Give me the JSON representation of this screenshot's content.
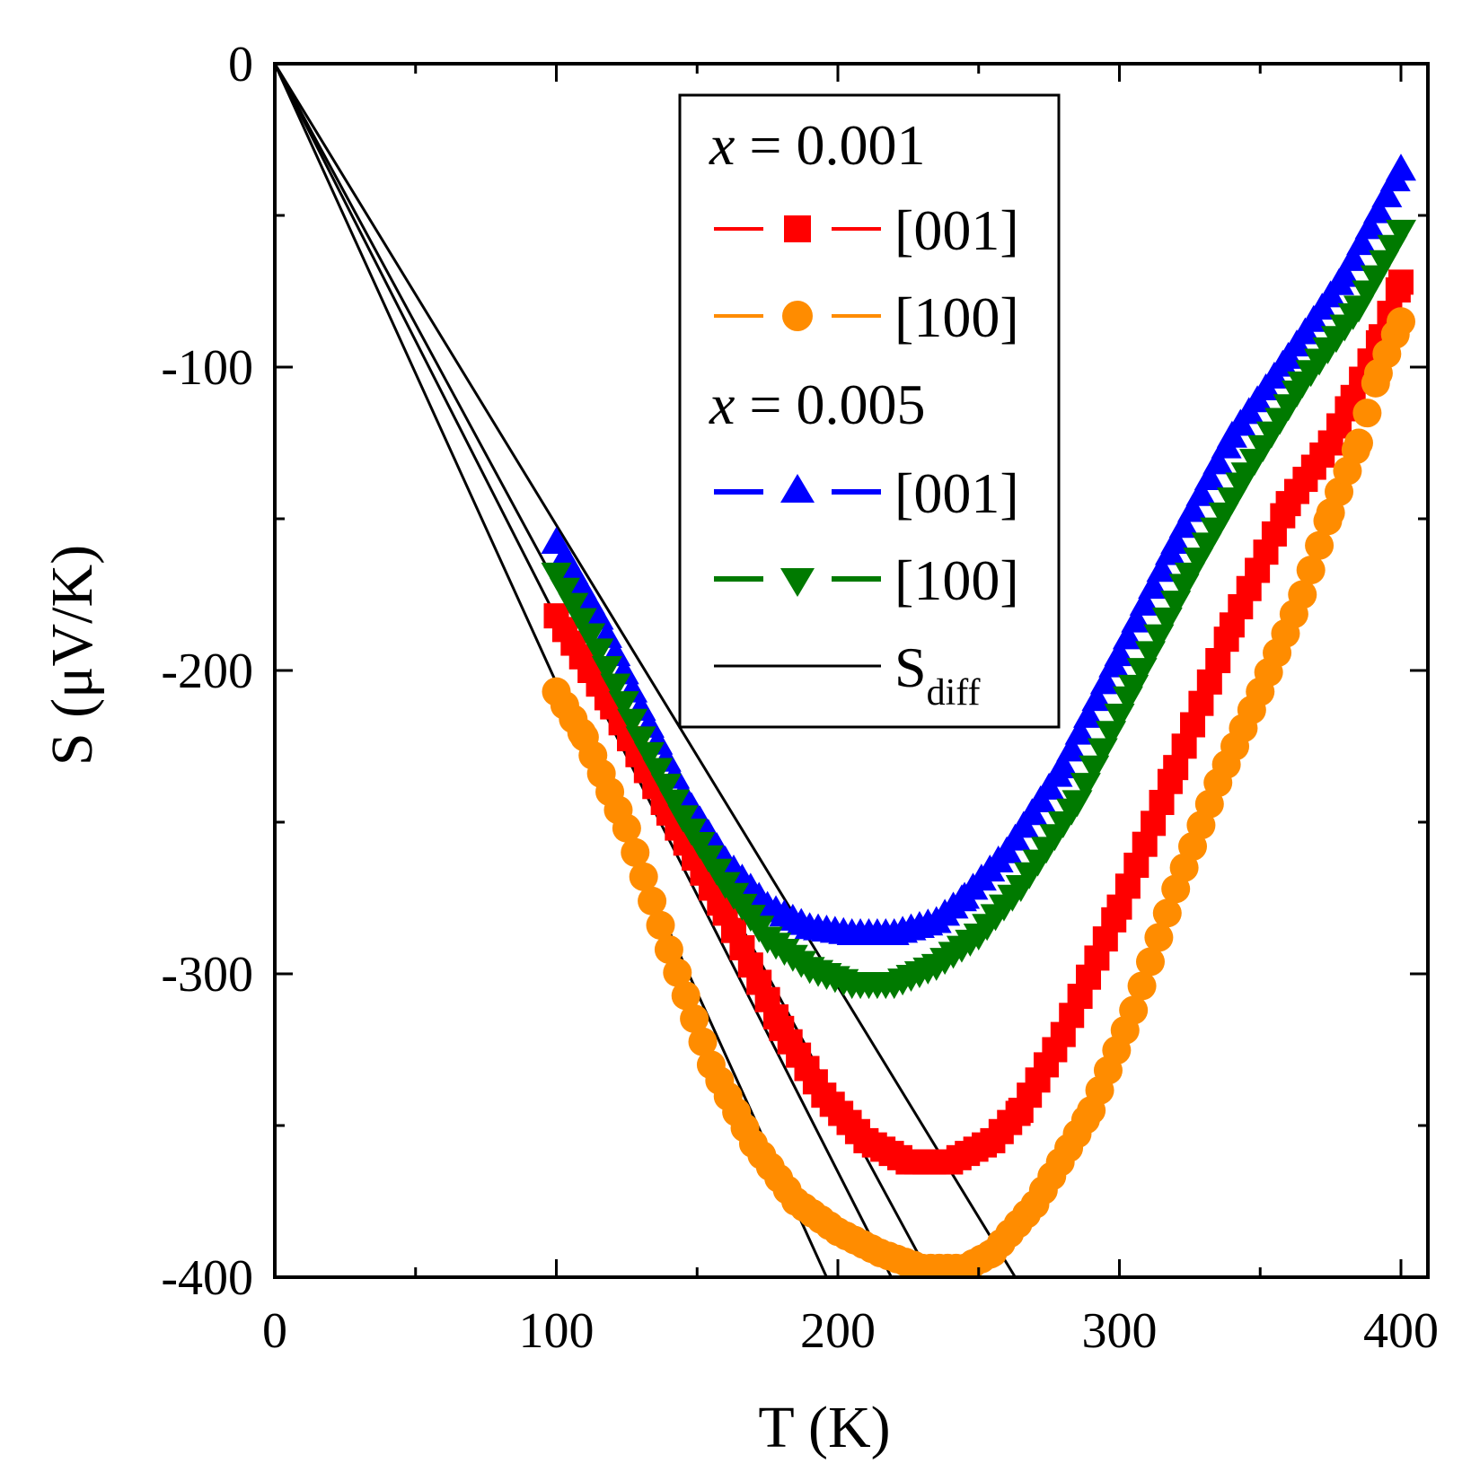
{
  "chart_data": {
    "type": "scatter",
    "title": "",
    "xlabel": "T  (K)",
    "ylabel": "S  (μV/K)",
    "xlim": [
      0,
      410
    ],
    "ylim": [
      -400,
      0
    ],
    "xticks": [
      0,
      100,
      200,
      300,
      400
    ],
    "yticks": [
      0,
      -100,
      -200,
      -300,
      -400
    ],
    "x_tick_labels": [
      "0",
      "100",
      "200",
      "300",
      "400"
    ],
    "y_tick_labels": [
      "0",
      "-100",
      "-200",
      "-300",
      "-400"
    ],
    "minor_x": [
      50,
      150,
      250,
      350
    ],
    "minor_y": [
      -50,
      -150,
      -250,
      -350
    ],
    "legend": {
      "placement": "top-center",
      "group_1": {
        "var": "x",
        "eq": " = 0.001"
      },
      "group_2": {
        "var": "x",
        "eq": " = 0.005"
      },
      "entries": [
        "[001]",
        "[100]",
        "[001]",
        "[100]"
      ],
      "sdiff_main": "S",
      "sdiff_sub": "diff"
    },
    "series": [
      {
        "name": "x = 0.001 [001]",
        "color": "#ff0000",
        "marker": "square",
        "points": [
          [
            100,
            -182
          ],
          [
            120,
            -212
          ],
          [
            140,
            -247
          ],
          [
            160,
            -280
          ],
          [
            180,
            -318
          ],
          [
            195,
            -340
          ],
          [
            210,
            -355
          ],
          [
            225,
            -362
          ],
          [
            240,
            -362
          ],
          [
            255,
            -355
          ],
          [
            265,
            -345
          ],
          [
            280,
            -320
          ],
          [
            300,
            -278
          ],
          [
            320,
            -232
          ],
          [
            340,
            -185
          ],
          [
            360,
            -145
          ],
          [
            375,
            -125
          ],
          [
            383,
            -110
          ],
          [
            393,
            -90
          ],
          [
            400,
            -72
          ]
        ]
      },
      {
        "name": "x = 0.001 [100]",
        "color": "#ff8c00",
        "marker": "circle",
        "points": [
          [
            100,
            -207
          ],
          [
            110,
            -222
          ],
          [
            125,
            -252
          ],
          [
            140,
            -292
          ],
          [
            155,
            -330
          ],
          [
            170,
            -356
          ],
          [
            185,
            -375
          ],
          [
            200,
            -385
          ],
          [
            215,
            -392
          ],
          [
            230,
            -397
          ],
          [
            245,
            -397
          ],
          [
            255,
            -392
          ],
          [
            270,
            -376
          ],
          [
            290,
            -345
          ],
          [
            305,
            -312
          ],
          [
            320,
            -272
          ],
          [
            335,
            -237
          ],
          [
            350,
            -207
          ],
          [
            365,
            -175
          ],
          [
            375,
            -148
          ],
          [
            385,
            -125
          ],
          [
            392,
            -102
          ],
          [
            400,
            -85
          ]
        ]
      },
      {
        "name": "x = 0.005 [001]",
        "color": "#0000ff",
        "marker": "triangle-up",
        "points": [
          [
            100,
            -158
          ],
          [
            115,
            -183
          ],
          [
            130,
            -213
          ],
          [
            145,
            -241
          ],
          [
            160,
            -263
          ],
          [
            175,
            -278
          ],
          [
            190,
            -285
          ],
          [
            205,
            -287
          ],
          [
            220,
            -287
          ],
          [
            235,
            -283
          ],
          [
            245,
            -275
          ],
          [
            260,
            -260
          ],
          [
            280,
            -232
          ],
          [
            300,
            -195
          ],
          [
            320,
            -158
          ],
          [
            340,
            -123
          ],
          [
            360,
            -97
          ],
          [
            380,
            -70
          ],
          [
            400,
            -35
          ]
        ]
      },
      {
        "name": "x = 0.005 [100]",
        "color": "#007a00",
        "marker": "triangle-down",
        "points": [
          [
            100,
            -168
          ],
          [
            115,
            -193
          ],
          [
            130,
            -222
          ],
          [
            145,
            -248
          ],
          [
            160,
            -270
          ],
          [
            175,
            -288
          ],
          [
            190,
            -298
          ],
          [
            205,
            -303
          ],
          [
            220,
            -303
          ],
          [
            235,
            -297
          ],
          [
            250,
            -287
          ],
          [
            265,
            -271
          ],
          [
            285,
            -243
          ],
          [
            305,
            -205
          ],
          [
            325,
            -168
          ],
          [
            345,
            -135
          ],
          [
            365,
            -105
          ],
          [
            385,
            -80
          ],
          [
            400,
            -55
          ]
        ]
      }
    ],
    "lines": [
      {
        "name": "S_diff 1",
        "color": "#000000",
        "from": [
          0,
          0
        ],
        "to": [
          196,
          -400
        ]
      },
      {
        "name": "S_diff 2",
        "color": "#000000",
        "from": [
          0,
          0
        ],
        "to": [
          219,
          -400
        ]
      },
      {
        "name": "S_diff 3",
        "color": "#000000",
        "from": [
          0,
          0
        ],
        "to": [
          233,
          -400
        ]
      },
      {
        "name": "S_diff 4",
        "color": "#000000",
        "from": [
          0,
          0
        ],
        "to": [
          263,
          -400
        ]
      }
    ]
  }
}
